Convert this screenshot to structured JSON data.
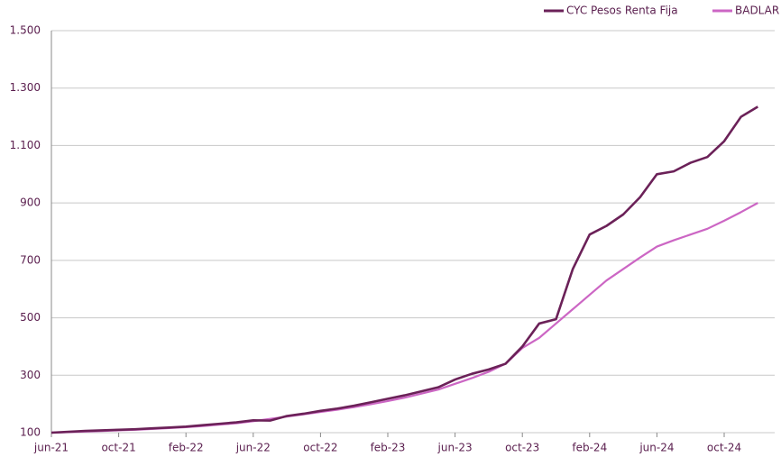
{
  "chart_data": {
    "type": "line",
    "categories": [
      "jun-21",
      null,
      null,
      null,
      "oct-21",
      null,
      null,
      null,
      "feb-22",
      null,
      null,
      null,
      "jun-22",
      null,
      null,
      null,
      "oct-22",
      null,
      null,
      null,
      "feb-23",
      null,
      null,
      null,
      "jun-23",
      null,
      null,
      null,
      "oct-23",
      null,
      null,
      null,
      "feb-24",
      null,
      null,
      null,
      "jun-24",
      null,
      null,
      null,
      "oct-24",
      null,
      null
    ],
    "series": [
      {
        "name": "CYC Pesos Renta Fija",
        "color": "#6b2158",
        "values": [
          100,
          103,
          106,
          108,
          110,
          112,
          115,
          118,
          121,
          126,
          131,
          136,
          143,
          142,
          158,
          166,
          176,
          184,
          194,
          206,
          218,
          230,
          244,
          258,
          285,
          305,
          320,
          340,
          400,
          480,
          495,
          670,
          790,
          820,
          860,
          920,
          1000,
          1010,
          1040,
          1060,
          1115,
          1200,
          1235
        ]
      },
      {
        "name": "BADLAR",
        "color": "#cc66c4",
        "values": [
          100,
          102,
          104,
          106,
          108,
          110,
          113,
          116,
          119,
          123,
          128,
          133,
          140,
          148,
          156,
          164,
          172,
          180,
          189,
          199,
          210,
          222,
          236,
          250,
          270,
          290,
          312,
          340,
          395,
          430,
          480,
          530,
          580,
          630,
          670,
          710,
          748,
          770,
          790,
          810,
          838,
          868,
          900
        ]
      }
    ],
    "ylim": [
      100,
      1500
    ],
    "yticks": [
      100,
      300,
      500,
      700,
      900,
      {
        "value": 1100,
        "label": "1.100"
      },
      {
        "value": 1300,
        "label": "1.300"
      },
      {
        "value": 1500,
        "label": "1.500"
      }
    ],
    "grid": true,
    "legend": "top-right"
  }
}
